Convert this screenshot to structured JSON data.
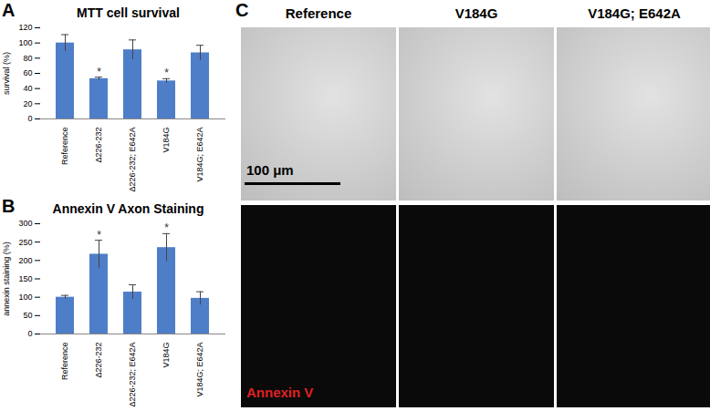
{
  "chart_data": [
    {
      "type": "bar",
      "panel": "A",
      "title": "MTT cell survival",
      "y_label": "survival (%)",
      "categories": [
        "Reference",
        "Δ226-232",
        "Δ226-232; E642A",
        "V184G",
        "V184G; E642A"
      ],
      "values": [
        100,
        53,
        91,
        50,
        87
      ],
      "errors": [
        11,
        2,
        13,
        3,
        10
      ],
      "color": "#4f7ec8",
      "ylim": [
        0,
        120
      ],
      "yticks": [
        0,
        20,
        40,
        60,
        80,
        100,
        120
      ],
      "grid": false,
      "annotations": [
        {
          "x": "Δ226-232",
          "text": "*"
        },
        {
          "x": "V184G",
          "text": "*"
        }
      ]
    },
    {
      "type": "bar",
      "panel": "B",
      "title": "Annexin V Axon Staining",
      "y_label": "annexin staining (%)",
      "categories": [
        "Reference",
        "Δ226-232",
        "Δ226-232; E642A",
        "V184G",
        "V184G; E642A"
      ],
      "values": [
        100,
        217,
        114,
        235,
        97
      ],
      "errors": [
        5,
        38,
        20,
        38,
        18
      ],
      "color": "#4f7ec8",
      "ylim": [
        0,
        300
      ],
      "yticks": [
        0,
        50,
        100,
        150,
        200,
        250,
        300
      ],
      "grid": false,
      "annotations": [
        {
          "x": "Δ226-232",
          "text": "*"
        },
        {
          "x": "V184G",
          "text": "*"
        }
      ]
    }
  ],
  "panel_c": {
    "panel": "C",
    "columns": [
      "Reference",
      "V184G",
      "V184G; E642A"
    ],
    "scale_bar": "100 μm",
    "stain_label": "Annexin V"
  }
}
